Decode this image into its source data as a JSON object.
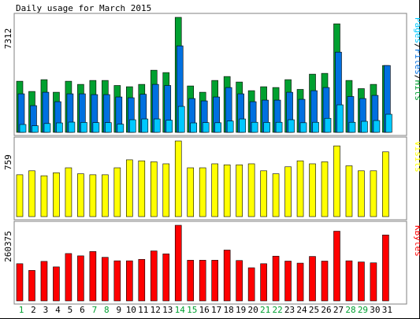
{
  "chart_data": [
    {
      "type": "bar",
      "title": "Daily usage for March 2015",
      "categories": [
        "1",
        "2",
        "3",
        "4",
        "5",
        "6",
        "7",
        "8",
        "9",
        "10",
        "11",
        "12",
        "13",
        "14",
        "15",
        "16",
        "17",
        "18",
        "19",
        "20",
        "21",
        "22",
        "23",
        "24",
        "25",
        "26",
        "27",
        "28",
        "29",
        "30",
        "31"
      ],
      "weekend_days": [
        "1",
        "7",
        "8",
        "14",
        "15",
        "21",
        "22",
        "28",
        "29"
      ],
      "ymax_label": "7312",
      "ymax": 7312,
      "legend_label": "Pages/Files/Hits",
      "legend_parts": [
        "Pages",
        "Files",
        "Hits"
      ],
      "series": [
        {
          "name": "Hits",
          "color": "#00a030",
          "values": [
            3250,
            2600,
            3350,
            2550,
            3250,
            3050,
            3300,
            3300,
            2980,
            2900,
            3050,
            3950,
            3800,
            7312,
            2950,
            2550,
            3300,
            3550,
            3200,
            2650,
            2900,
            2850,
            3350,
            2730,
            3700,
            3750,
            6900,
            3300,
            2780,
            3050,
            4250
          ]
        },
        {
          "name": "Files",
          "color": "#0070e0",
          "values": [
            2450,
            1700,
            2550,
            1950,
            2450,
            2450,
            2400,
            2400,
            2250,
            2200,
            2420,
            3050,
            2980,
            5500,
            2150,
            2000,
            2250,
            2850,
            2450,
            1950,
            2050,
            2050,
            2550,
            2100,
            2650,
            2850,
            5100,
            2280,
            2150,
            2350,
            4250
          ]
        },
        {
          "name": "Pages",
          "color": "#00c8ff",
          "values": [
            500,
            420,
            560,
            600,
            650,
            630,
            620,
            620,
            520,
            800,
            850,
            850,
            770,
            1650,
            600,
            620,
            610,
            720,
            850,
            640,
            630,
            640,
            800,
            610,
            640,
            890,
            1750,
            640,
            700,
            750,
            1150
          ]
        }
      ]
    },
    {
      "type": "bar",
      "categories": [
        "1",
        "2",
        "3",
        "4",
        "5",
        "6",
        "7",
        "8",
        "9",
        "10",
        "11",
        "12",
        "13",
        "14",
        "15",
        "16",
        "17",
        "18",
        "19",
        "20",
        "21",
        "22",
        "23",
        "24",
        "25",
        "26",
        "27",
        "28",
        "29",
        "30",
        "31"
      ],
      "ymax_label": "759",
      "ymax": 759,
      "legend_label": "Visits",
      "series": [
        {
          "name": "Visits",
          "color": "#ffff00",
          "values": [
            420,
            460,
            410,
            440,
            490,
            430,
            420,
            420,
            490,
            570,
            560,
            550,
            530,
            759,
            490,
            490,
            530,
            520,
            520,
            530,
            460,
            430,
            500,
            560,
            530,
            550,
            710,
            510,
            460,
            460,
            650
          ]
        }
      ]
    },
    {
      "type": "bar",
      "categories": [
        "1",
        "2",
        "3",
        "4",
        "5",
        "6",
        "7",
        "8",
        "9",
        "10",
        "11",
        "12",
        "13",
        "14",
        "15",
        "16",
        "17",
        "18",
        "19",
        "20",
        "21",
        "22",
        "23",
        "24",
        "25",
        "26",
        "27",
        "28",
        "29",
        "30",
        "31"
      ],
      "ymax_label": "260375",
      "ymax": 260375,
      "legend_label": "KBytes",
      "series": [
        {
          "name": "KBytes",
          "color": "#ff0000",
          "values": [
            128000,
            105000,
            136000,
            117000,
            163000,
            155000,
            170000,
            150000,
            138000,
            138000,
            143000,
            172000,
            162000,
            260375,
            140000,
            140000,
            140000,
            175000,
            139000,
            114000,
            128000,
            154000,
            137000,
            130000,
            153000,
            137000,
            240000,
            138000,
            134000,
            131000,
            227000
          ]
        }
      ]
    }
  ]
}
